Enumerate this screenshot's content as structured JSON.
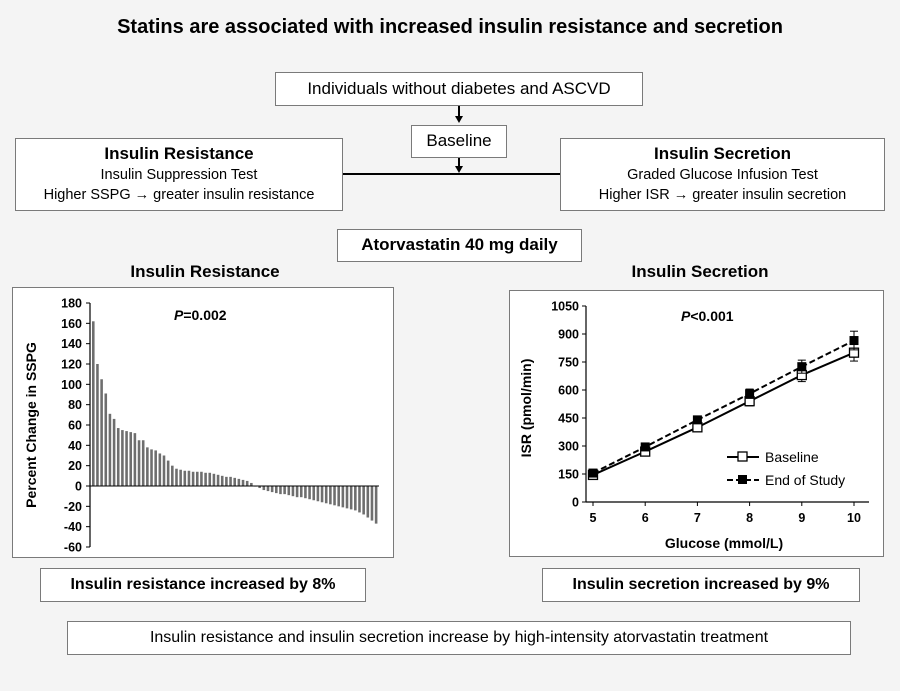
{
  "title": "Statins are associated with increased insulin resistance and secretion",
  "flow": {
    "population": "Individuals without diabetes and ASCVD",
    "baseline": "Baseline",
    "left_box": {
      "heading": "Insulin Resistance",
      "line1": "Insulin Suppression Test",
      "line2": "Higher SSPG → greater insulin resistance"
    },
    "right_box": {
      "heading": "Insulin Secretion",
      "line1": "Graded Glucose Infusion Test",
      "line2": "Higher ISR → greater insulin secretion"
    },
    "treatment": "Atorvastatin 40 mg daily"
  },
  "left_panel": {
    "heading": "Insulin Resistance",
    "pvalue_italic": "P",
    "pvalue_rest": "=0.002",
    "result": "Insulin resistance increased by 8%"
  },
  "right_panel": {
    "heading": "Insulin Secretion",
    "pvalue_italic": "P",
    "pvalue_rest": "<0.001",
    "result": "Insulin secretion increased by 9%"
  },
  "conclusion": "Insulin resistance and insulin secretion increase by high-intensity atorvastatin treatment",
  "chart_data": [
    {
      "type": "bar",
      "ylabel": "Percent Change in SSPG",
      "ylim": [
        -60,
        180
      ],
      "yticks": [
        180,
        160,
        140,
        120,
        100,
        80,
        60,
        40,
        20,
        0,
        -20,
        -40,
        -60
      ],
      "values": [
        162,
        120,
        105,
        91,
        71,
        66,
        57,
        55,
        54,
        53,
        52,
        45,
        45,
        38,
        36,
        35,
        32,
        30,
        25,
        20,
        17,
        16,
        15,
        15,
        14,
        14,
        14,
        13,
        13,
        12,
        11,
        10,
        9,
        9,
        8,
        7,
        6,
        5,
        3,
        0,
        -2,
        -4,
        -5,
        -6,
        -7,
        -8,
        -8,
        -9,
        -10,
        -11,
        -11,
        -12,
        -13,
        -14,
        -15,
        -16,
        -17,
        -18,
        -19,
        -20,
        -21,
        -22,
        -23,
        -24,
        -26,
        -28,
        -31,
        -34,
        -37
      ],
      "color": "#6e6e6e"
    },
    {
      "type": "line",
      "xlabel": "Glucose (mmol/L)",
      "ylabel": "ISR (pmol/min)",
      "xlim": [
        5,
        10
      ],
      "ylim": [
        0,
        1050
      ],
      "xticks": [
        5,
        6,
        7,
        8,
        9,
        10
      ],
      "yticks": [
        0,
        150,
        300,
        450,
        600,
        750,
        900,
        1050
      ],
      "legend_position": "bottom-right",
      "series": [
        {
          "name": "Baseline",
          "x": [
            5,
            6,
            7,
            8,
            9,
            10
          ],
          "y": [
            145,
            270,
            400,
            540,
            680,
            800
          ],
          "err": [
            10,
            12,
            18,
            25,
            35,
            45
          ],
          "style": "solid",
          "marker": "open-square"
        },
        {
          "name": "End of Study",
          "x": [
            5,
            6,
            7,
            8,
            9,
            10
          ],
          "y": [
            155,
            295,
            440,
            580,
            725,
            865
          ],
          "err": [
            10,
            12,
            18,
            25,
            35,
            50
          ],
          "style": "dashed",
          "marker": "filled-square"
        }
      ]
    }
  ]
}
